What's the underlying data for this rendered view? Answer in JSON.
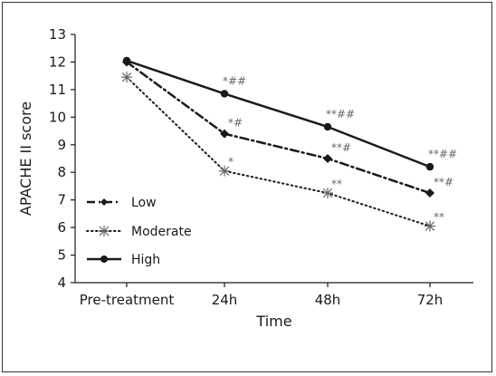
{
  "chart_data": {
    "type": "line",
    "title": "",
    "xlabel": "Time",
    "ylabel": "APACHE II score",
    "categories": [
      "Pre-treatment",
      "24h",
      "48h",
      "72h"
    ],
    "ylim": [
      4,
      13
    ],
    "yticks": [
      "4",
      "5",
      "6",
      "7",
      "8",
      "9",
      "10",
      "11",
      "12",
      "13"
    ],
    "grid": false,
    "legend_position": "bottom-left",
    "series": [
      {
        "name": "Low",
        "values": [
          12.0,
          9.4,
          8.5,
          7.25
        ],
        "line_style": "dash-dot",
        "marker": "diamond",
        "annotations": [
          "",
          "*#",
          "**#",
          "**#"
        ]
      },
      {
        "name": "Moderate",
        "values": [
          11.45,
          8.05,
          7.25,
          6.05
        ],
        "line_style": "dotted",
        "marker": "asterisk",
        "annotations": [
          "",
          "*",
          "**",
          "**"
        ]
      },
      {
        "name": "High",
        "values": [
          12.05,
          10.85,
          9.65,
          8.2
        ],
        "line_style": "solid",
        "marker": "circle",
        "annotations": [
          "",
          "*##",
          "**##",
          "**##"
        ]
      }
    ]
  }
}
